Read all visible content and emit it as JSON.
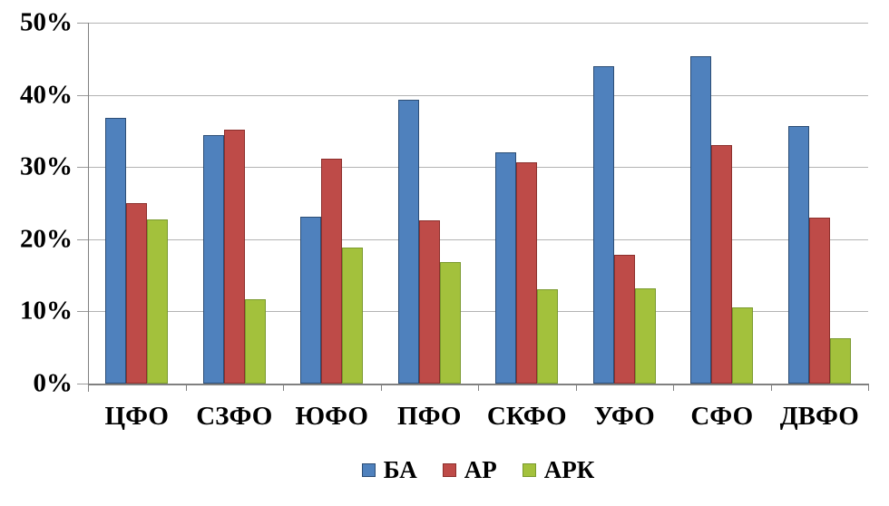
{
  "chart_data": {
    "type": "bar",
    "title": "",
    "xlabel": "",
    "ylabel": "",
    "categories": [
      "ЦФО",
      "СЗФО",
      "ЮФО",
      "ПФО",
      "СКФО",
      "УФО",
      "СФО",
      "ДВФО"
    ],
    "series": [
      {
        "name": "БА",
        "color": "#4f81bd",
        "border_color": "#2c4d75",
        "values": [
          36.8,
          34.4,
          23.1,
          39.3,
          32.0,
          44.0,
          45.3,
          35.7
        ]
      },
      {
        "name": "АР",
        "color": "#be4b48",
        "border_color": "#8c2f2c",
        "values": [
          25.0,
          35.2,
          31.2,
          22.6,
          30.6,
          17.8,
          33.0,
          23.0
        ]
      },
      {
        "name": "АРК",
        "color": "#a3c13c",
        "border_color": "#7a9a2e",
        "values": [
          22.8,
          11.7,
          18.9,
          16.8,
          13.1,
          13.2,
          10.6,
          6.3
        ]
      }
    ],
    "ylim": [
      0,
      50
    ],
    "ytick_step": 10,
    "ytick_labels": [
      "0%",
      "10%",
      "20%",
      "30%",
      "40%",
      "50%"
    ],
    "grid": true,
    "legend_position": "bottom"
  },
  "style_colors": {
    "gridline": "#b3b3b3",
    "axis": "#808080",
    "text": "#000000",
    "background": "#ffffff"
  }
}
